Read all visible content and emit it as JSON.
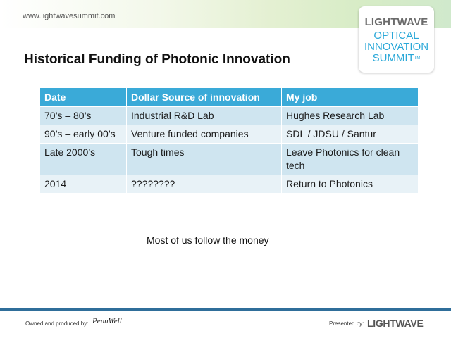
{
  "header": {
    "site_url": "www.lightwavesummit.com"
  },
  "logo": {
    "brand": "LIGHTWAVE",
    "line1": "OPTICAL",
    "line2": "INNOVATION",
    "line3": "SUMMIT",
    "trademark": "TM"
  },
  "slide": {
    "title": "Historical Funding of Photonic Innovation",
    "tagline": "Most of us follow the money"
  },
  "table": {
    "headers": [
      "Date",
      "Dollar Source of innovation",
      "My job"
    ],
    "rows": [
      [
        "70’s – 80’s",
        "Industrial R&D Lab",
        "Hughes Research Lab"
      ],
      [
        "90’s – early 00’s",
        "Venture funded companies",
        "SDL / JDSU / Santur"
      ],
      [
        "Late 2000’s",
        "Tough times",
        "Leave Photonics for clean tech"
      ],
      [
        "2014",
        "????????",
        "Return to Photonics"
      ]
    ]
  },
  "footer": {
    "owned_by_label": "Owned and produced by:",
    "owner_logo": "PennWell",
    "presented_by_label": "Presented by:",
    "presenter_logo": "LIGHTWAVE"
  },
  "colors": {
    "header_row": "#3aaad8",
    "row_odd": "#cfe5f0",
    "row_even": "#e8f2f7",
    "footer_rule": "#2f6e9a",
    "logo_accent": "#2aa8d8"
  }
}
